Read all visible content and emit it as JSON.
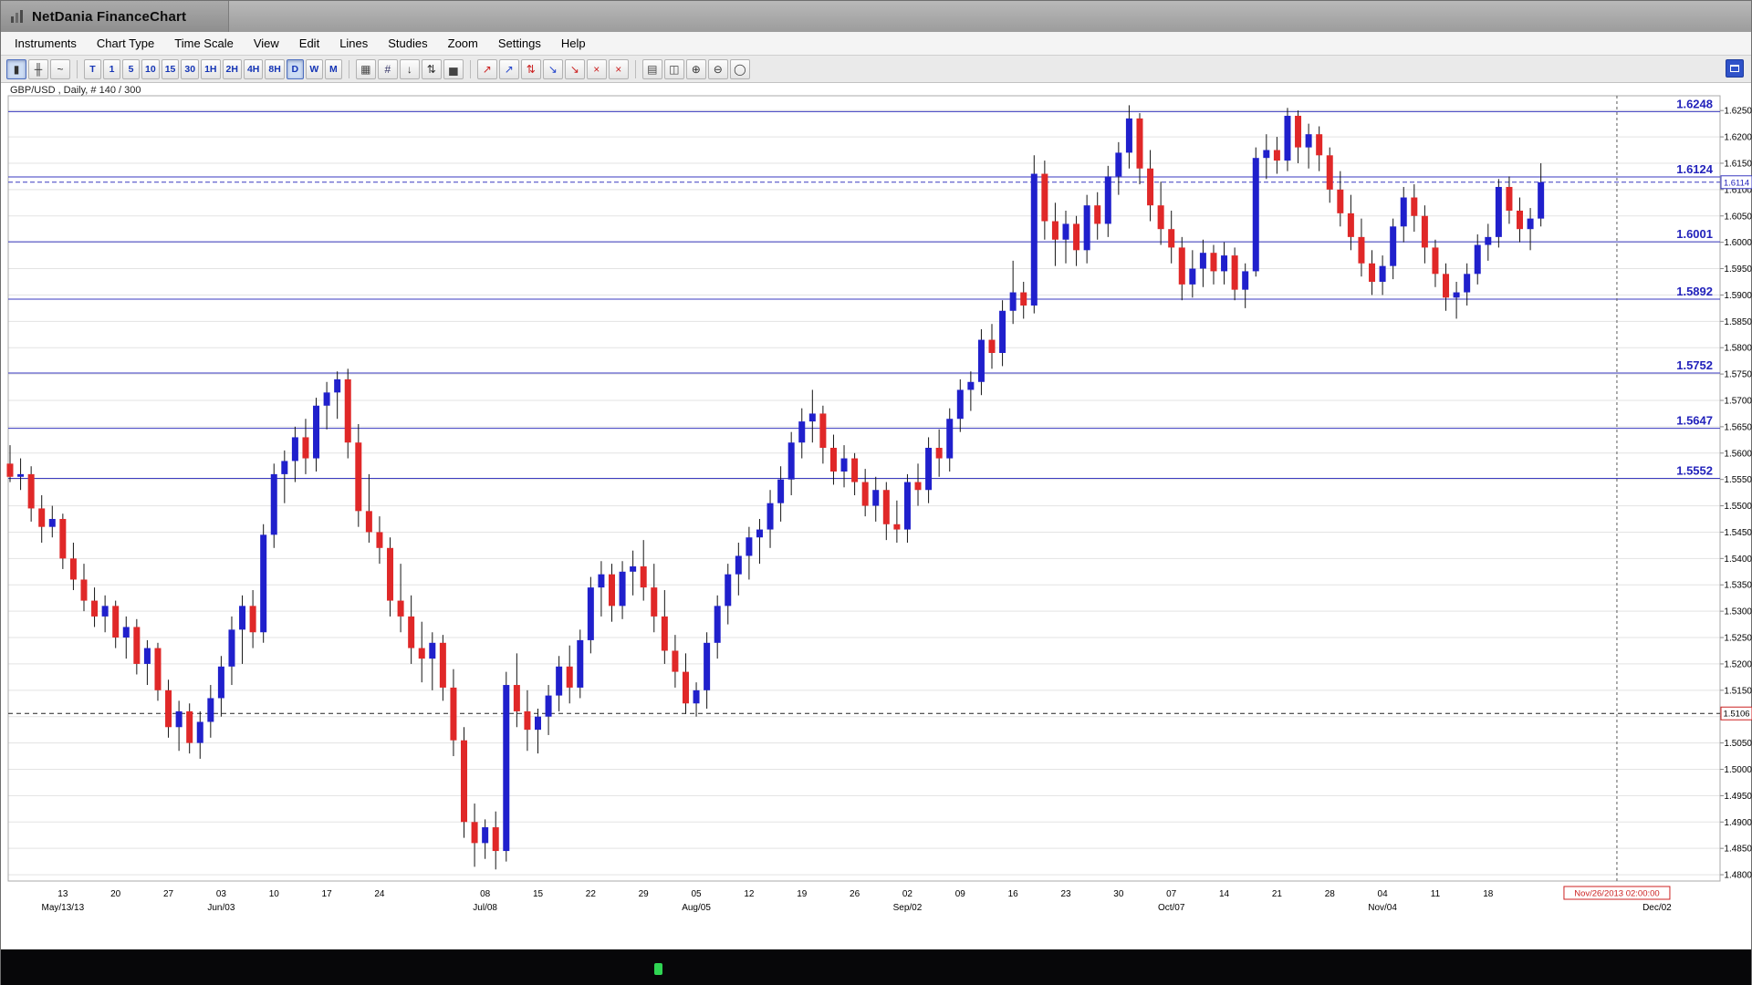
{
  "window": {
    "title": "NetDania FinanceChart"
  },
  "menu": {
    "items": [
      "Instruments",
      "Chart Type",
      "Time Scale",
      "View",
      "Edit",
      "Lines",
      "Studies",
      "Zoom",
      "Settings",
      "Help"
    ]
  },
  "toolbar": {
    "chart_type_icons": [
      {
        "name": "candlestick-chart-icon",
        "glyph": "▮",
        "selected": true
      },
      {
        "name": "bar-chart-icon",
        "glyph": "╫"
      },
      {
        "name": "line-chart-icon",
        "glyph": "~"
      }
    ],
    "timeframes": [
      {
        "label": "T"
      },
      {
        "label": "1"
      },
      {
        "label": "5"
      },
      {
        "label": "10"
      },
      {
        "label": "15"
      },
      {
        "label": "30"
      },
      {
        "label": "1H"
      },
      {
        "label": "2H"
      },
      {
        "label": "4H"
      },
      {
        "label": "8H"
      },
      {
        "label": "D",
        "selected": true
      },
      {
        "label": "W"
      },
      {
        "label": "M"
      }
    ],
    "tool_icons": [
      {
        "name": "grid-layout-icon",
        "glyph": "▦",
        "color": "#444444"
      },
      {
        "name": "hash-icon",
        "glyph": "#",
        "color": "#333366"
      },
      {
        "name": "data-window-icon",
        "glyph": "↓",
        "color": "#333333"
      },
      {
        "name": "compare-symbols-icon",
        "glyph": "⇅",
        "color": "#333333"
      },
      {
        "name": "volume-study-icon",
        "glyph": "▅",
        "color": "#444444"
      }
    ],
    "draw_icons": [
      {
        "name": "trendline-icon",
        "glyph": "↗",
        "color": "#cc2222"
      },
      {
        "name": "trendline-blue-icon",
        "glyph": "↗",
        "color": "#2244cc"
      },
      {
        "name": "channel-icon",
        "glyph": "⇅",
        "color": "#cc2222"
      },
      {
        "name": "fibonacci-icon",
        "glyph": "↘",
        "color": "#2244cc"
      },
      {
        "name": "remove-drawing-icon",
        "glyph": "↘",
        "color": "#cc2222"
      },
      {
        "name": "delete-line-icon",
        "glyph": "×",
        "color": "#cc2222"
      },
      {
        "name": "delete-all-lines-icon",
        "glyph": "×",
        "color": "#cc2222"
      }
    ],
    "output_icons": [
      {
        "name": "print-icon",
        "glyph": "▤",
        "color": "#444444"
      },
      {
        "name": "print-preview-icon",
        "glyph": "◫",
        "color": "#444444"
      },
      {
        "name": "zoom-in-icon",
        "glyph": "⊕",
        "color": "#333333"
      },
      {
        "name": "zoom-out-icon",
        "glyph": "⊖",
        "color": "#333333"
      },
      {
        "name": "zoom-reset-icon",
        "glyph": "◯",
        "color": "#333333"
      }
    ]
  },
  "chart_header": {
    "instrument_label": "GBP/USD , Daily, # 140 / 300"
  },
  "chart_data": {
    "type": "candlestick",
    "symbol": "GBP/USD",
    "timeframe": "Daily",
    "bars_label": "# 140 / 300",
    "y_axis": {
      "min": 1.48,
      "max": 1.625,
      "step": 0.005
    },
    "y_view": {
      "top": 1.6278,
      "bottom": 1.4788
    },
    "price_levels": [
      1.6248,
      1.6124,
      1.6001,
      1.5892,
      1.5752,
      1.5647,
      1.5552
    ],
    "current_price": 1.6114,
    "alert_level": 1.5106,
    "crosshair": {
      "index": 152.2,
      "time_label": "Nov/26/2013 02:00:00"
    },
    "day_labels": [
      {
        "t": "13",
        "i": 5
      },
      {
        "t": "20",
        "i": 10
      },
      {
        "t": "27",
        "i": 15
      },
      {
        "t": "03",
        "i": 20
      },
      {
        "t": "10",
        "i": 25
      },
      {
        "t": "17",
        "i": 30
      },
      {
        "t": "24",
        "i": 35
      },
      {
        "t": "08",
        "i": 45
      },
      {
        "t": "15",
        "i": 50
      },
      {
        "t": "22",
        "i": 55
      },
      {
        "t": "29",
        "i": 60
      },
      {
        "t": "05",
        "i": 65
      },
      {
        "t": "12",
        "i": 70
      },
      {
        "t": "19",
        "i": 75
      },
      {
        "t": "26",
        "i": 80
      },
      {
        "t": "02",
        "i": 85
      },
      {
        "t": "09",
        "i": 90
      },
      {
        "t": "16",
        "i": 95
      },
      {
        "t": "23",
        "i": 100
      },
      {
        "t": "30",
        "i": 105
      },
      {
        "t": "07",
        "i": 110
      },
      {
        "t": "14",
        "i": 115
      },
      {
        "t": "21",
        "i": 120
      },
      {
        "t": "28",
        "i": 125
      },
      {
        "t": "04",
        "i": 130
      },
      {
        "t": "11",
        "i": 135
      },
      {
        "t": "18",
        "i": 140
      }
    ],
    "month_labels": [
      {
        "t": "May/13/13",
        "i": 5
      },
      {
        "t": "Jun/03",
        "i": 20
      },
      {
        "t": "Jul/08",
        "i": 45
      },
      {
        "t": "Aug/05",
        "i": 65
      },
      {
        "t": "Sep/02",
        "i": 85
      },
      {
        "t": "Oct/07",
        "i": 110
      },
      {
        "t": "Nov/04",
        "i": 130
      },
      {
        "t": "Dec/02",
        "i": 156
      }
    ],
    "candles": [
      [
        1.558,
        1.5615,
        1.5545,
        1.5555
      ],
      [
        1.5555,
        1.559,
        1.553,
        1.556
      ],
      [
        1.556,
        1.5575,
        1.547,
        1.5495
      ],
      [
        1.5495,
        1.552,
        1.543,
        1.546
      ],
      [
        1.546,
        1.55,
        1.544,
        1.5475
      ],
      [
        1.5475,
        1.5485,
        1.538,
        1.54
      ],
      [
        1.54,
        1.543,
        1.534,
        1.536
      ],
      [
        1.536,
        1.539,
        1.53,
        1.532
      ],
      [
        1.532,
        1.5345,
        1.527,
        1.529
      ],
      [
        1.529,
        1.533,
        1.526,
        1.531
      ],
      [
        1.531,
        1.532,
        1.523,
        1.525
      ],
      [
        1.525,
        1.529,
        1.521,
        1.527
      ],
      [
        1.527,
        1.5285,
        1.518,
        1.52
      ],
      [
        1.52,
        1.5245,
        1.516,
        1.523
      ],
      [
        1.523,
        1.524,
        1.513,
        1.515
      ],
      [
        1.515,
        1.517,
        1.506,
        1.508
      ],
      [
        1.508,
        1.513,
        1.5035,
        1.511
      ],
      [
        1.511,
        1.5125,
        1.503,
        1.505
      ],
      [
        1.505,
        1.511,
        1.502,
        1.509
      ],
      [
        1.509,
        1.516,
        1.506,
        1.5135
      ],
      [
        1.5135,
        1.5215,
        1.51,
        1.5195
      ],
      [
        1.5195,
        1.529,
        1.516,
        1.5265
      ],
      [
        1.5265,
        1.533,
        1.52,
        1.531
      ],
      [
        1.531,
        1.534,
        1.523,
        1.526
      ],
      [
        1.526,
        1.5465,
        1.524,
        1.5445
      ],
      [
        1.5445,
        1.558,
        1.542,
        1.556
      ],
      [
        1.556,
        1.5605,
        1.5505,
        1.5585
      ],
      [
        1.5585,
        1.565,
        1.5545,
        1.563
      ],
      [
        1.563,
        1.5665,
        1.556,
        1.559
      ],
      [
        1.559,
        1.5705,
        1.5565,
        1.569
      ],
      [
        1.569,
        1.5735,
        1.5645,
        1.5715
      ],
      [
        1.5715,
        1.5755,
        1.5665,
        1.574
      ],
      [
        1.574,
        1.576,
        1.559,
        1.562
      ],
      [
        1.562,
        1.5655,
        1.546,
        1.549
      ],
      [
        1.549,
        1.556,
        1.543,
        1.545
      ],
      [
        1.545,
        1.548,
        1.539,
        1.542
      ],
      [
        1.542,
        1.544,
        1.529,
        1.532
      ],
      [
        1.532,
        1.539,
        1.526,
        1.529
      ],
      [
        1.529,
        1.533,
        1.52,
        1.523
      ],
      [
        1.523,
        1.528,
        1.5165,
        1.521
      ],
      [
        1.521,
        1.526,
        1.515,
        1.524
      ],
      [
        1.524,
        1.5255,
        1.513,
        1.5155
      ],
      [
        1.5155,
        1.519,
        1.5025,
        1.5055
      ],
      [
        1.5055,
        1.508,
        1.487,
        1.49
      ],
      [
        1.49,
        1.4935,
        1.4815,
        1.486
      ],
      [
        1.486,
        1.4905,
        1.483,
        1.489
      ],
      [
        1.489,
        1.492,
        1.481,
        1.4845
      ],
      [
        1.4845,
        1.5185,
        1.4825,
        1.516
      ],
      [
        1.516,
        1.522,
        1.508,
        1.511
      ],
      [
        1.511,
        1.515,
        1.5035,
        1.5075
      ],
      [
        1.5075,
        1.5115,
        1.503,
        1.51
      ],
      [
        1.51,
        1.516,
        1.5065,
        1.514
      ],
      [
        1.514,
        1.5215,
        1.511,
        1.5195
      ],
      [
        1.5195,
        1.5235,
        1.5125,
        1.5155
      ],
      [
        1.5155,
        1.5265,
        1.5135,
        1.5245
      ],
      [
        1.5245,
        1.5365,
        1.522,
        1.5345
      ],
      [
        1.5345,
        1.5395,
        1.529,
        1.537
      ],
      [
        1.537,
        1.539,
        1.528,
        1.531
      ],
      [
        1.531,
        1.5395,
        1.5285,
        1.5375
      ],
      [
        1.5375,
        1.5415,
        1.533,
        1.5385
      ],
      [
        1.5385,
        1.5435,
        1.532,
        1.5345
      ],
      [
        1.5345,
        1.539,
        1.526,
        1.529
      ],
      [
        1.529,
        1.534,
        1.52,
        1.5225
      ],
      [
        1.5225,
        1.5255,
        1.5155,
        1.5185
      ],
      [
        1.5185,
        1.522,
        1.5105,
        1.5125
      ],
      [
        1.5125,
        1.5165,
        1.51,
        1.515
      ],
      [
        1.515,
        1.526,
        1.5115,
        1.524
      ],
      [
        1.524,
        1.533,
        1.521,
        1.531
      ],
      [
        1.531,
        1.539,
        1.5275,
        1.537
      ],
      [
        1.537,
        1.543,
        1.533,
        1.5405
      ],
      [
        1.5405,
        1.546,
        1.536,
        1.544
      ],
      [
        1.544,
        1.5475,
        1.539,
        1.5455
      ],
      [
        1.5455,
        1.553,
        1.542,
        1.5505
      ],
      [
        1.5505,
        1.5575,
        1.547,
        1.555
      ],
      [
        1.555,
        1.564,
        1.552,
        1.562
      ],
      [
        1.562,
        1.5685,
        1.559,
        1.566
      ],
      [
        1.566,
        1.572,
        1.562,
        1.5675
      ],
      [
        1.5675,
        1.569,
        1.558,
        1.561
      ],
      [
        1.561,
        1.5635,
        1.554,
        1.5565
      ],
      [
        1.5565,
        1.5615,
        1.5535,
        1.559
      ],
      [
        1.559,
        1.56,
        1.552,
        1.5545
      ],
      [
        1.5545,
        1.557,
        1.548,
        1.55
      ],
      [
        1.55,
        1.5555,
        1.547,
        1.553
      ],
      [
        1.553,
        1.5545,
        1.5435,
        1.5465
      ],
      [
        1.5465,
        1.551,
        1.543,
        1.5455
      ],
      [
        1.5455,
        1.556,
        1.543,
        1.5545
      ],
      [
        1.5545,
        1.558,
        1.55,
        1.553
      ],
      [
        1.553,
        1.563,
        1.5505,
        1.561
      ],
      [
        1.561,
        1.5645,
        1.5555,
        1.559
      ],
      [
        1.559,
        1.5685,
        1.5565,
        1.5665
      ],
      [
        1.5665,
        1.574,
        1.564,
        1.572
      ],
      [
        1.572,
        1.5755,
        1.568,
        1.5735
      ],
      [
        1.5735,
        1.5835,
        1.571,
        1.5815
      ],
      [
        1.5815,
        1.5845,
        1.576,
        1.579
      ],
      [
        1.579,
        1.589,
        1.5765,
        1.587
      ],
      [
        1.587,
        1.5965,
        1.5845,
        1.5905
      ],
      [
        1.5905,
        1.5925,
        1.5855,
        1.588
      ],
      [
        1.588,
        1.6165,
        1.5865,
        1.613
      ],
      [
        1.613,
        1.6155,
        1.6005,
        1.604
      ],
      [
        1.604,
        1.6075,
        1.5955,
        1.6005
      ],
      [
        1.6005,
        1.606,
        1.596,
        1.6035
      ],
      [
        1.6035,
        1.605,
        1.5955,
        1.5985
      ],
      [
        1.5985,
        1.609,
        1.596,
        1.607
      ],
      [
        1.607,
        1.6095,
        1.6005,
        1.6035
      ],
      [
        1.6035,
        1.6145,
        1.601,
        1.6125
      ],
      [
        1.6125,
        1.619,
        1.609,
        1.617
      ],
      [
        1.617,
        1.626,
        1.614,
        1.6235
      ],
      [
        1.6235,
        1.6245,
        1.611,
        1.614
      ],
      [
        1.614,
        1.6175,
        1.604,
        1.607
      ],
      [
        1.607,
        1.6115,
        1.5995,
        1.6025
      ],
      [
        1.6025,
        1.606,
        1.596,
        1.599
      ],
      [
        1.599,
        1.601,
        1.589,
        1.592
      ],
      [
        1.592,
        1.5985,
        1.5895,
        1.595
      ],
      [
        1.595,
        1.6005,
        1.5915,
        1.598
      ],
      [
        1.598,
        1.5995,
        1.592,
        1.5945
      ],
      [
        1.5945,
        1.6,
        1.592,
        1.5975
      ],
      [
        1.5975,
        1.599,
        1.589,
        1.591
      ],
      [
        1.591,
        1.596,
        1.5875,
        1.5945
      ],
      [
        1.5945,
        1.618,
        1.5935,
        1.616
      ],
      [
        1.616,
        1.6205,
        1.612,
        1.6175
      ],
      [
        1.6175,
        1.62,
        1.613,
        1.6155
      ],
      [
        1.6155,
        1.6255,
        1.6135,
        1.624
      ],
      [
        1.624,
        1.625,
        1.615,
        1.618
      ],
      [
        1.618,
        1.6225,
        1.614,
        1.6205
      ],
      [
        1.6205,
        1.622,
        1.6135,
        1.6165
      ],
      [
        1.6165,
        1.618,
        1.6075,
        1.61
      ],
      [
        1.61,
        1.6135,
        1.603,
        1.6055
      ],
      [
        1.6055,
        1.609,
        1.5985,
        1.601
      ],
      [
        1.601,
        1.6045,
        1.5935,
        1.596
      ],
      [
        1.596,
        1.5985,
        1.59,
        1.5925
      ],
      [
        1.5925,
        1.5975,
        1.59,
        1.5955
      ],
      [
        1.5955,
        1.6045,
        1.593,
        1.603
      ],
      [
        1.603,
        1.6105,
        1.6,
        1.6085
      ],
      [
        1.6085,
        1.611,
        1.602,
        1.605
      ],
      [
        1.605,
        1.607,
        1.596,
        1.599
      ],
      [
        1.599,
        1.6005,
        1.5915,
        1.594
      ],
      [
        1.594,
        1.596,
        1.587,
        1.5895
      ],
      [
        1.5895,
        1.5925,
        1.5855,
        1.5905
      ],
      [
        1.5905,
        1.596,
        1.588,
        1.594
      ],
      [
        1.594,
        1.6015,
        1.592,
        1.5995
      ],
      [
        1.5995,
        1.6035,
        1.5965,
        1.601
      ],
      [
        1.601,
        1.612,
        1.599,
        1.6105
      ],
      [
        1.6105,
        1.6125,
        1.6035,
        1.606
      ],
      [
        1.606,
        1.6085,
        1.6,
        1.6025
      ],
      [
        1.6025,
        1.6065,
        1.5985,
        1.6045
      ],
      [
        1.6045,
        1.615,
        1.603,
        1.6114
      ]
    ],
    "colors": {
      "up": "#2020cc",
      "down": "#e02828",
      "wick": "#151515",
      "level_line": "#3a3ac0",
      "level_text": "#2222bb",
      "grid": "#e3e3e3",
      "alert_line": "#222222",
      "alert_box_border": "#cc2222",
      "crosshair": "#5a5a5a",
      "time_label": "#cc2222"
    },
    "legend_position": "none",
    "grid": "horizontal"
  },
  "footer": {
    "status_indicator_color": "#2fd553"
  }
}
